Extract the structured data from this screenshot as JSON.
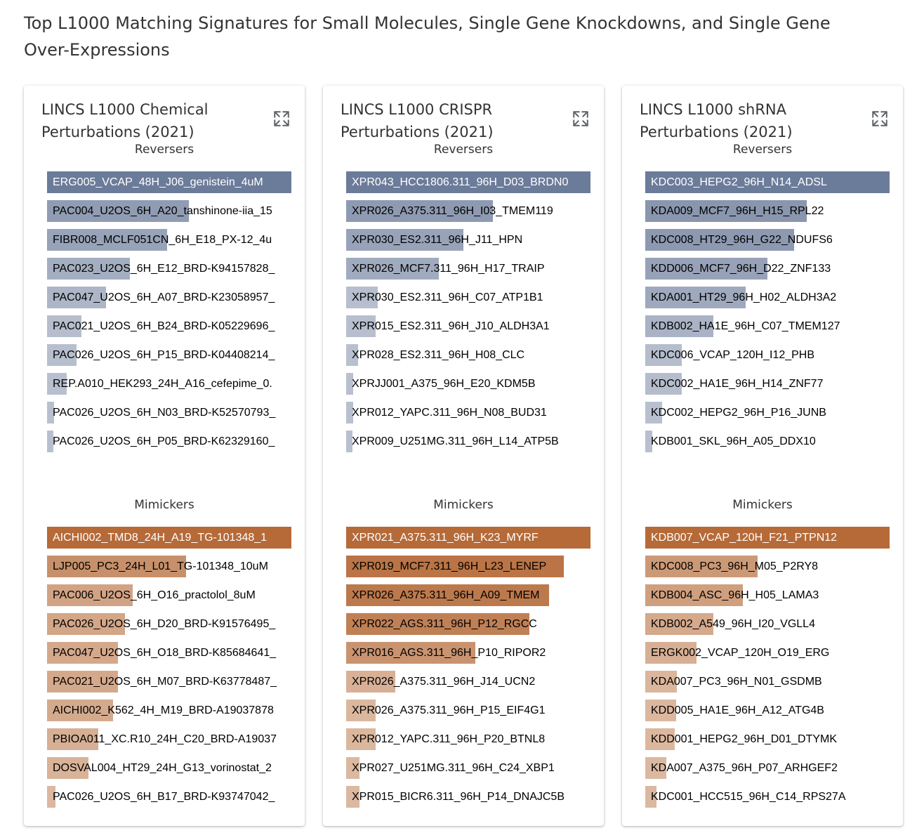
{
  "page_title": "Top L1000 Matching Signatures for Small Molecules, Single Gene Knockdowns, and Single Gene Over-Expressions",
  "colors": {
    "reversers_base": "#627394",
    "mimickers_base": "#b0612b",
    "first_label_text": "#ffffff",
    "label_text": "#000000"
  },
  "chart_data": [
    {
      "type": "bar",
      "title": "LINCS L1000 Chemical Perturbations (2021)",
      "orientation": "horizontal",
      "sections": [
        {
          "name": "Reversers",
          "categories": [
            "ERG005_VCAP_48H_J06_genistein_4uM",
            "PAC004_U2OS_6H_A20_tanshinone-iia_15",
            "FIBR008_MCLF051CN_6H_E18_PX-12_4u",
            "PAC023_U2OS_6H_E12_BRD-K94157828_",
            "PAC047_U2OS_6H_A07_BRD-K23058957_",
            "PAC021_U2OS_6H_B24_BRD-K05229696_",
            "PAC026_U2OS_6H_P15_BRD-K04408214_",
            "REP.A010_HEK293_24H_A16_cefepime_0.",
            "PAC026_U2OS_6H_N03_BRD-K52570793_",
            "PAC026_U2OS_6H_P05_BRD-K62329160_"
          ],
          "values": [
            1.0,
            0.58,
            0.49,
            0.34,
            0.24,
            0.14,
            0.12,
            0.08,
            0.03,
            0.025
          ]
        },
        {
          "name": "Mimickers",
          "categories": [
            "AICHI002_TMD8_24H_A19_TG-101348_1",
            "LJP005_PC3_24H_L01_TG-101348_10uM",
            "PAC006_U2OS_6H_O16_practolol_8uM",
            "PAC026_U2OS_6H_D20_BRD-K91576495_",
            "PAC047_U2OS_6H_O18_BRD-K85684641_",
            "PAC021_U2OS_6H_M07_BRD-K63778487_",
            "AICHI002_K562_4H_M19_BRD-A19037878",
            "PBIOA011_XC.R10_24H_C20_BRD-A19037",
            "DOSVAL004_HT29_24H_G13_vorinostat_2",
            "PAC026_U2OS_6H_B17_BRD-K93747042_"
          ],
          "values": [
            1.0,
            0.57,
            0.35,
            0.32,
            0.29,
            0.29,
            0.27,
            0.21,
            0.17,
            0.035
          ]
        }
      ]
    },
    {
      "type": "bar",
      "title": "LINCS L1000 CRISPR Perturbations (2021)",
      "orientation": "horizontal",
      "sections": [
        {
          "name": "Reversers",
          "categories": [
            "XPR043_HCC1806.311_96H_D03_BRDN0",
            "XPR026_A375.311_96H_I03_TMEM119",
            "XPR030_ES2.311_96H_J11_HPN",
            "XPR026_MCF7.311_96H_H17_TRAIP",
            "XPR030_ES2.311_96H_C07_ATP1B1",
            "XPR015_ES2.311_96H_J10_ALDH3A1",
            "XPR028_ES2.311_96H_H08_CLC",
            "XPRJJ001_A375_96H_E20_KDM5B",
            "XPR012_YAPC.311_96H_N08_BUD31",
            "XPR009_U251MG.311_96H_L14_ATP5B"
          ],
          "values": [
            1.0,
            0.6,
            0.48,
            0.38,
            0.13,
            0.12,
            0.05,
            0.03,
            0.03,
            0.025
          ]
        },
        {
          "name": "Mimickers",
          "categories": [
            "XPR021_A375.311_96H_K23_MYRF",
            "XPR019_MCF7.311_96H_L23_LENEP",
            "XPR026_A375.311_96H_A09_TMEM",
            "XPR022_AGS.311_96H_P12_RGCC",
            "XPR016_AGS.311_96H_P10_RIPOR2",
            "XPR026_A375.311_96H_J14_UCN2",
            "XPR026_A375.311_96H_P15_EIF4G1",
            "XPR012_YAPC.311_96H_P20_BTNL8",
            "XPR027_U251MG.311_96H_C24_XBP1",
            "XPR015_BICR6.311_96H_P14_DNAJC5B"
          ],
          "values": [
            1.0,
            0.89,
            0.83,
            0.75,
            0.53,
            0.2,
            0.12,
            0.12,
            0.055,
            0.055
          ]
        }
      ]
    },
    {
      "type": "bar",
      "title": "LINCS L1000 shRNA Perturbations (2021)",
      "orientation": "horizontal",
      "sections": [
        {
          "name": "Reversers",
          "categories": [
            "KDC003_HEPG2_96H_N14_ADSL",
            "KDA009_MCF7_96H_H15_RPL22",
            "KDC008_HT29_96H_G22_NDUFS6",
            "KDD006_MCF7_96H_D22_ZNF133",
            "KDA001_HT29_96H_H02_ALDH3A2",
            "KDB002_HA1E_96H_C07_TMEM127",
            "KDC006_VCAP_120H_I12_PHB",
            "KDC002_HA1E_96H_H14_ZNF77",
            "KDC002_HEPG2_96H_P16_JUNB",
            "KDB001_SKL_96H_A05_DDX10"
          ],
          "values": [
            1.0,
            0.66,
            0.61,
            0.5,
            0.41,
            0.28,
            0.15,
            0.15,
            0.07,
            0.03
          ]
        },
        {
          "name": "Mimickers",
          "categories": [
            "KDB007_VCAP_120H_F21_PTPN12",
            "KDC008_PC3_96H_M05_P2RY8",
            "KDB004_ASC_96H_H05_LAMA3",
            "KDB002_A549_96H_I20_VGLL4",
            "ERGK002_VCAP_120H_O19_ERG",
            "KDA007_PC3_96H_N01_GSDMB",
            "KDD005_HA1E_96H_A12_ATG4B",
            "KDD001_HEPG2_96H_D01_DTYMK",
            "KDA007_A375_96H_P07_ARHGEF2",
            "KDC001_HCC515_96H_C14_RPS27A"
          ],
          "values": [
            1.0,
            0.46,
            0.4,
            0.28,
            0.21,
            0.13,
            0.125,
            0.12,
            0.085,
            0.045
          ]
        }
      ]
    }
  ]
}
